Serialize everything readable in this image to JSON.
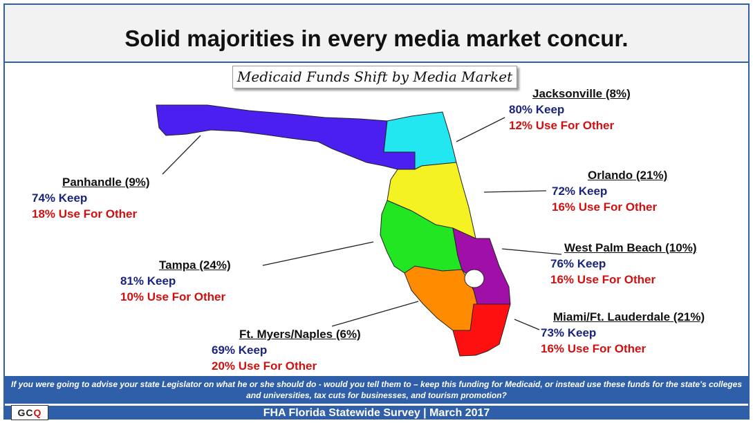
{
  "title": "Solid majorities in every media market concur.",
  "subtitle": "Medicaid Funds Shift by Media Market",
  "markets": {
    "jacksonville": {
      "name": "Jacksonville (8%)",
      "keep": "80% Keep",
      "other": "12% Use For Other",
      "color": "#22e6f0"
    },
    "panhandle": {
      "name": "Panhandle (9%)",
      "keep": "74% Keep",
      "other": "18% Use For Other",
      "color": "#4a1ff0"
    },
    "orlando": {
      "name": "Orlando (21%)",
      "keep": "72% Keep",
      "other": "16% Use For Other",
      "color": "#f4f222"
    },
    "west_palm_beach": {
      "name": "West Palm Beach (10%)",
      "keep": "76% Keep",
      "other": "16% Use For Other",
      "color": "#a010a8"
    },
    "tampa": {
      "name": "Tampa (24%)",
      "keep": "81% Keep",
      "other": "10% Use For Other",
      "color": "#22e622"
    },
    "ft_myers_naples": {
      "name": "Ft. Myers/Naples (6%)",
      "keep": "69% Keep",
      "other": "20% Use For Other",
      "color": "#ff8c00"
    },
    "miami": {
      "name": "Miami/Ft. Lauderdale (21%)",
      "keep": "73% Keep",
      "other": "16% Use For Other",
      "color": "#ff1010"
    }
  },
  "question": "If you were going to advise your state Legislator on what he or she should do - would you tell them to – keep this funding for Medicaid, or instead use these funds for the state's colleges and universities, tax cuts for businesses, and tourism promotion?",
  "footer": "FHA Florida Statewide Survey | March 2017",
  "logo": {
    "left": "GC",
    "right": "Q"
  }
}
